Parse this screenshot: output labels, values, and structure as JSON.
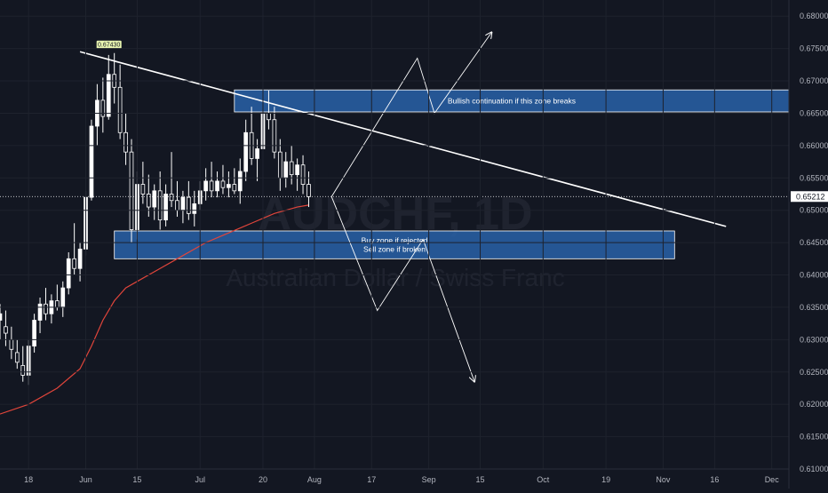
{
  "chart_data": {
    "type": "candlestick",
    "watermark": {
      "symbol": "AUDCHF, 1D",
      "name": "Australian Dollar / Swiss Franc"
    },
    "y_axis": {
      "ylim": [
        0.61,
        0.6825
      ],
      "ticks": [
        "0.68000",
        "0.67500",
        "0.67000",
        "0.66500",
        "0.66000",
        "0.65500",
        "0.65000",
        "0.64500",
        "0.64000",
        "0.63500",
        "0.63000",
        "0.62500",
        "0.62000",
        "0.61500",
        "0.61000"
      ],
      "tick_values": [
        0.68,
        0.675,
        0.67,
        0.665,
        0.66,
        0.655,
        0.65,
        0.645,
        0.64,
        0.635,
        0.63,
        0.625,
        0.62,
        0.615,
        0.61
      ]
    },
    "x_axis": {
      "xlim": [
        0,
        138
      ],
      "ticks": [
        {
          "label": "18",
          "index": 5
        },
        {
          "label": "Jun",
          "index": 15
        },
        {
          "label": "15",
          "index": 24
        },
        {
          "label": "Jul",
          "index": 35
        },
        {
          "label": "20",
          "index": 46
        },
        {
          "label": "Aug",
          "index": 55
        },
        {
          "label": "17",
          "index": 65
        },
        {
          "label": "Sep",
          "index": 75
        },
        {
          "label": "15",
          "index": 84
        },
        {
          "label": "Oct",
          "index": 95
        },
        {
          "label": "19",
          "index": 106
        },
        {
          "label": "Nov",
          "index": 116
        },
        {
          "label": "16",
          "index": 125
        },
        {
          "label": "Dec",
          "index": 135
        }
      ]
    },
    "ohlc": [
      [
        0,
        0.633,
        0.6355,
        0.63,
        0.634
      ],
      [
        1,
        0.632,
        0.6345,
        0.629,
        0.631
      ],
      [
        2,
        0.63,
        0.632,
        0.627,
        0.6285
      ],
      [
        3,
        0.628,
        0.63,
        0.6255,
        0.6265
      ],
      [
        4,
        0.626,
        0.629,
        0.6235,
        0.6245
      ],
      [
        5,
        0.6245,
        0.63,
        0.623,
        0.629
      ],
      [
        6,
        0.629,
        0.634,
        0.628,
        0.633
      ],
      [
        7,
        0.633,
        0.6365,
        0.631,
        0.6355
      ],
      [
        8,
        0.6355,
        0.638,
        0.633,
        0.634
      ],
      [
        9,
        0.634,
        0.637,
        0.6325,
        0.636
      ],
      [
        10,
        0.636,
        0.6385,
        0.6345,
        0.635
      ],
      [
        11,
        0.635,
        0.639,
        0.6335,
        0.638
      ],
      [
        12,
        0.638,
        0.6435,
        0.637,
        0.6425
      ],
      [
        13,
        0.6425,
        0.648,
        0.64,
        0.641
      ],
      [
        14,
        0.641,
        0.645,
        0.639,
        0.644
      ],
      [
        15,
        0.644,
        0.653,
        0.643,
        0.652
      ],
      [
        16,
        0.652,
        0.664,
        0.6515,
        0.663
      ],
      [
        17,
        0.663,
        0.6695,
        0.66,
        0.667
      ],
      [
        18,
        0.667,
        0.6705,
        0.662,
        0.6645
      ],
      [
        19,
        0.6645,
        0.674,
        0.664,
        0.671
      ],
      [
        20,
        0.671,
        0.6743,
        0.6665,
        0.669
      ],
      [
        21,
        0.669,
        0.6725,
        0.661,
        0.662
      ],
      [
        22,
        0.662,
        0.665,
        0.657,
        0.659
      ],
      [
        23,
        0.659,
        0.661,
        0.645,
        0.647
      ],
      [
        24,
        0.647,
        0.656,
        0.6455,
        0.654
      ],
      [
        25,
        0.654,
        0.6575,
        0.651,
        0.6525
      ],
      [
        26,
        0.6525,
        0.6555,
        0.649,
        0.6505
      ],
      [
        27,
        0.6505,
        0.654,
        0.6485,
        0.653
      ],
      [
        28,
        0.653,
        0.656,
        0.647,
        0.6485
      ],
      [
        29,
        0.6485,
        0.654,
        0.6475,
        0.6525
      ],
      [
        30,
        0.6525,
        0.659,
        0.6505,
        0.6515
      ],
      [
        31,
        0.6515,
        0.6545,
        0.649,
        0.65
      ],
      [
        32,
        0.65,
        0.653,
        0.648,
        0.652
      ],
      [
        33,
        0.652,
        0.6545,
        0.6485,
        0.6495
      ],
      [
        34,
        0.6495,
        0.653,
        0.6475,
        0.651
      ],
      [
        35,
        0.651,
        0.6545,
        0.65,
        0.653
      ],
      [
        36,
        0.653,
        0.6565,
        0.6515,
        0.6545
      ],
      [
        37,
        0.6545,
        0.6575,
        0.652,
        0.653
      ],
      [
        38,
        0.653,
        0.656,
        0.652,
        0.6545
      ],
      [
        39,
        0.6545,
        0.657,
        0.6525,
        0.6535
      ],
      [
        40,
        0.6535,
        0.656,
        0.652,
        0.654
      ],
      [
        41,
        0.654,
        0.6565,
        0.6525,
        0.653
      ],
      [
        42,
        0.653,
        0.658,
        0.651,
        0.656
      ],
      [
        43,
        0.656,
        0.664,
        0.6545,
        0.662
      ],
      [
        44,
        0.662,
        0.666,
        0.657,
        0.658
      ],
      [
        45,
        0.658,
        0.661,
        0.6545,
        0.6595
      ],
      [
        46,
        0.6595,
        0.6665,
        0.658,
        0.665
      ],
      [
        47,
        0.665,
        0.6685,
        0.6625,
        0.664
      ],
      [
        48,
        0.664,
        0.666,
        0.658,
        0.659
      ],
      [
        49,
        0.659,
        0.661,
        0.653,
        0.655
      ],
      [
        50,
        0.655,
        0.659,
        0.6535,
        0.6575
      ],
      [
        51,
        0.6575,
        0.66,
        0.654,
        0.6555
      ],
      [
        52,
        0.6555,
        0.658,
        0.653,
        0.657
      ],
      [
        53,
        0.657,
        0.6585,
        0.6525,
        0.654
      ],
      [
        54,
        0.654,
        0.656,
        0.6505,
        0.6521
      ]
    ],
    "moving_average": {
      "x": [
        0,
        5,
        10,
        14,
        16,
        18,
        20,
        22,
        24,
        28,
        32,
        36,
        40,
        44,
        48,
        52,
        54
      ],
      "y": [
        0.6185,
        0.62,
        0.6225,
        0.6255,
        0.629,
        0.633,
        0.636,
        0.638,
        0.639,
        0.641,
        0.643,
        0.645,
        0.6465,
        0.648,
        0.6495,
        0.6505,
        0.6508
      ],
      "color": "#e0453b"
    },
    "last_price": "0.65212",
    "peak_label": "0.67430",
    "trendline": {
      "x": [
        14,
        127
      ],
      "y": [
        0.6745,
        0.6475
      ],
      "color": "#ffffff"
    },
    "zones": [
      {
        "label_lines": [
          "Bullish continuation if this zone breaks"
        ],
        "x0": 41,
        "x1": 138,
        "y0": 0.6652,
        "y1": 0.6686,
        "color": "#2962a8"
      },
      {
        "label_lines": [
          "Buy zone if rejected",
          "Sell zone if broken"
        ],
        "x0": 20,
        "x1": 118,
        "y0": 0.6425,
        "y1": 0.6468,
        "color": "#2962a8"
      }
    ],
    "projection_paths": [
      {
        "x": [
          58,
          73,
          76,
          86
        ],
        "y": [
          0.6521,
          0.6735,
          0.665,
          0.6775
        ]
      },
      {
        "x": [
          58,
          66,
          74,
          83
        ],
        "y": [
          0.6521,
          0.6345,
          0.6455,
          0.6235
        ]
      }
    ],
    "colors": {
      "background": "#131722",
      "up": "#ffffff",
      "down": "#ffffff",
      "grid": "#1e222d",
      "zone_border": "#ffffff",
      "axis_text": "#b2b5be"
    }
  }
}
